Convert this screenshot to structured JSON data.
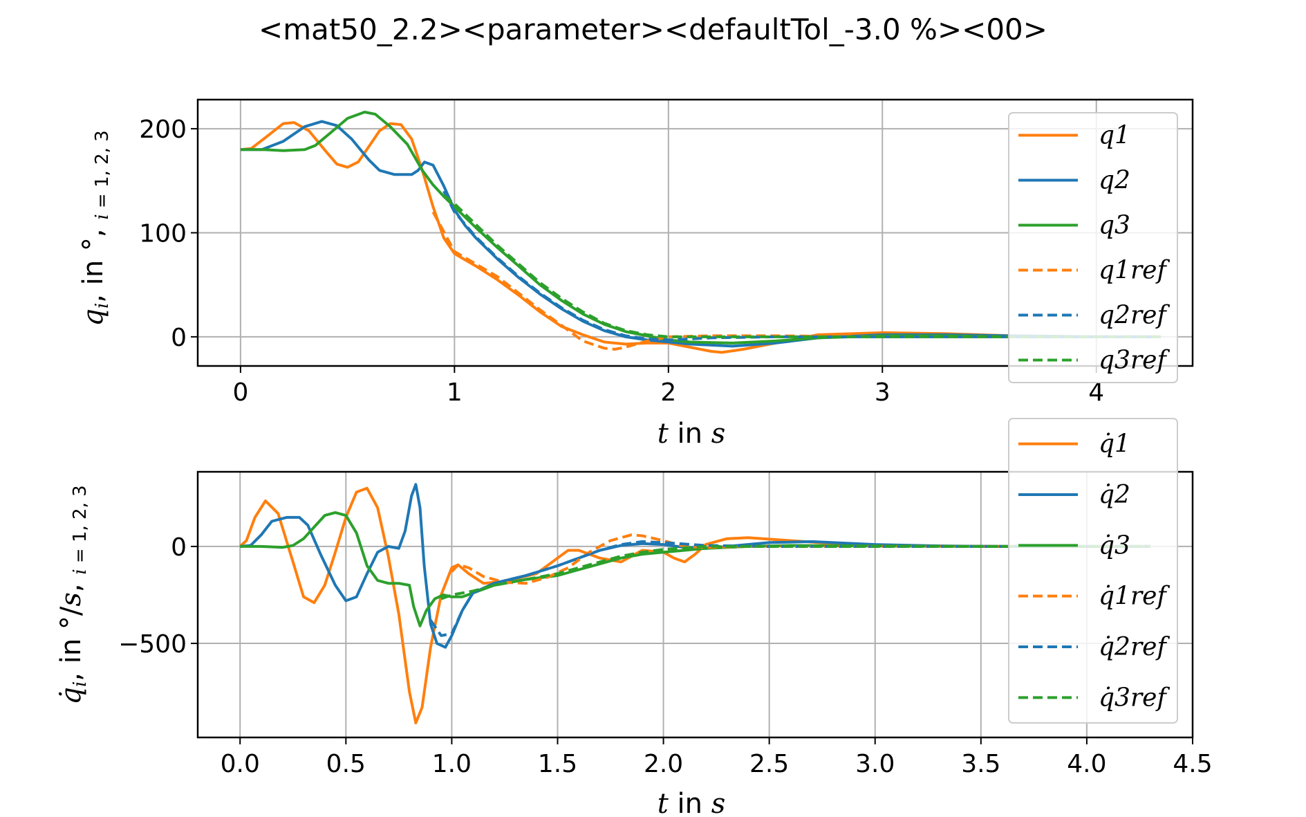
{
  "title": "<mat50_2.2><parameter><defaultTol_-3.0 %><00>",
  "colors": {
    "q1": "#ff7f0e",
    "q2": "#1f77b4",
    "q3": "#2ca02c",
    "grid": "#b0b0b0"
  },
  "chart_data": [
    {
      "type": "line",
      "xlabel": "t in s",
      "ylabel": "q_i,  in °,  i = 1, 2, 3",
      "xlim": [
        -0.2,
        4.45
      ],
      "ylim": [
        -28,
        228
      ],
      "xticks": [
        0,
        1,
        2,
        3,
        4
      ],
      "xtick_labels": [
        "0",
        "1",
        "2",
        "3",
        "4"
      ],
      "yticks": [
        0,
        100,
        200
      ],
      "ytick_labels": [
        "0",
        "100",
        "200"
      ],
      "grid": true,
      "legend_position": "right",
      "legend": [
        "q1",
        "q2",
        "q3",
        "q1ref",
        "q2ref",
        "q3ref"
      ],
      "series": [
        {
          "name": "q1",
          "color": "#ff7f0e",
          "dash": false,
          "x": [
            0,
            0.05,
            0.12,
            0.2,
            0.25,
            0.32,
            0.4,
            0.45,
            0.5,
            0.55,
            0.6,
            0.65,
            0.7,
            0.75,
            0.8,
            0.85,
            0.9,
            0.95,
            1.0,
            1.05,
            1.1,
            1.2,
            1.3,
            1.4,
            1.5,
            1.6,
            1.7,
            1.8,
            1.9,
            2.0,
            2.1,
            2.2,
            2.25,
            2.35,
            2.5,
            2.7,
            3.0,
            3.3,
            3.6,
            4.0,
            4.3
          ],
          "y": [
            180,
            181,
            192,
            205,
            206,
            198,
            178,
            166,
            163,
            168,
            183,
            198,
            205,
            204,
            190,
            160,
            125,
            95,
            80,
            74,
            68,
            55,
            40,
            24,
            10,
            2,
            -5,
            -7,
            -6,
            -6,
            -10,
            -14,
            -15,
            -12,
            -6,
            2,
            4,
            3,
            1,
            0,
            0
          ]
        },
        {
          "name": "q2",
          "color": "#1f77b4",
          "dash": false,
          "x": [
            0,
            0.1,
            0.2,
            0.3,
            0.38,
            0.45,
            0.52,
            0.6,
            0.65,
            0.72,
            0.8,
            0.83,
            0.86,
            0.9,
            0.95,
            1.0,
            1.05,
            1.1,
            1.2,
            1.3,
            1.4,
            1.5,
            1.6,
            1.7,
            1.8,
            1.9,
            2.0,
            2.1,
            2.3,
            2.5,
            2.7,
            3.0,
            3.3,
            3.6,
            4.0,
            4.3
          ],
          "y": [
            180,
            180,
            188,
            202,
            207,
            203,
            190,
            170,
            160,
            156,
            156,
            160,
            168,
            165,
            145,
            122,
            107,
            95,
            75,
            57,
            41,
            27,
            15,
            6,
            0,
            -3,
            -5,
            -7,
            -9,
            -6,
            -1,
            2,
            2,
            1,
            0,
            0
          ]
        },
        {
          "name": "q3",
          "color": "#2ca02c",
          "dash": false,
          "x": [
            0,
            0.1,
            0.2,
            0.3,
            0.35,
            0.42,
            0.5,
            0.58,
            0.63,
            0.7,
            0.78,
            0.85,
            0.9,
            0.95,
            1.0,
            1.1,
            1.2,
            1.3,
            1.4,
            1.5,
            1.6,
            1.7,
            1.8,
            1.9,
            2.0,
            2.1,
            2.3,
            2.5,
            2.7,
            3.0,
            3.3,
            3.6,
            4.0,
            4.3
          ],
          "y": [
            180,
            180,
            179,
            180,
            184,
            196,
            210,
            216,
            214,
            202,
            185,
            160,
            146,
            135,
            125,
            105,
            86,
            68,
            50,
            35,
            22,
            12,
            5,
            1,
            -3,
            -5,
            -6,
            -4,
            -1,
            1,
            1,
            0,
            0,
            0
          ]
        },
        {
          "name": "q1ref",
          "color": "#ff7f0e",
          "dash": true,
          "x": [
            0.9,
            1.0,
            1.05,
            1.1,
            1.2,
            1.3,
            1.4,
            1.5,
            1.6,
            1.7,
            1.75,
            1.8,
            1.9,
            2.0,
            2.2,
            2.5,
            3.0,
            3.5,
            4.0,
            4.3
          ],
          "y": [
            120,
            82,
            76,
            70,
            58,
            42,
            26,
            11,
            -4,
            -11,
            -12,
            -10,
            -4,
            0,
            1,
            1,
            0,
            0,
            0,
            0
          ]
        },
        {
          "name": "q2ref",
          "color": "#1f77b4",
          "dash": true,
          "x": [
            0.95,
            1.0,
            1.1,
            1.2,
            1.3,
            1.4,
            1.5,
            1.6,
            1.7,
            1.8,
            1.9,
            2.0,
            2.2,
            2.5,
            3.0,
            3.5,
            4.0,
            4.3
          ],
          "y": [
            140,
            120,
            96,
            76,
            58,
            42,
            28,
            16,
            7,
            1,
            -2,
            -3,
            -1,
            0,
            0,
            0,
            0,
            0
          ]
        },
        {
          "name": "q3ref",
          "color": "#2ca02c",
          "dash": true,
          "x": [
            0.95,
            1.0,
            1.1,
            1.2,
            1.3,
            1.4,
            1.5,
            1.6,
            1.7,
            1.8,
            1.9,
            2.0,
            2.2,
            2.5,
            3.0,
            3.5,
            4.0,
            4.3
          ],
          "y": [
            136,
            128,
            108,
            88,
            70,
            52,
            37,
            24,
            13,
            6,
            2,
            0,
            0,
            0,
            0,
            0,
            0,
            0
          ]
        }
      ]
    },
    {
      "type": "line",
      "xlabel": "t in s",
      "ylabel": "q̇_i, in °/s,  i = 1, 2, 3",
      "xlim": [
        -0.2,
        4.5
      ],
      "ylim": [
        -985,
        385
      ],
      "xticks": [
        0,
        0.5,
        1.0,
        1.5,
        2.0,
        2.5,
        3.0,
        3.5,
        4.0,
        4.5
      ],
      "xtick_labels": [
        "0.0",
        "0.5",
        "1.0",
        "1.5",
        "2.0",
        "2.5",
        "3.0",
        "3.5",
        "4.0",
        "4.5"
      ],
      "yticks": [
        -500,
        0
      ],
      "ytick_labels": [
        "−500",
        "0"
      ],
      "grid": true,
      "legend_position": "right",
      "legend": [
        "q̇1",
        "q̇2",
        "q̇3",
        "q̇1ref",
        "q̇2ref",
        "q̇3ref"
      ],
      "series": [
        {
          "name": "q̇1",
          "color": "#ff7f0e",
          "dash": false,
          "x": [
            0,
            0.03,
            0.07,
            0.12,
            0.18,
            0.25,
            0.3,
            0.35,
            0.4,
            0.45,
            0.5,
            0.55,
            0.6,
            0.65,
            0.7,
            0.75,
            0.8,
            0.83,
            0.86,
            0.9,
            0.95,
            1.0,
            1.03,
            1.08,
            1.15,
            1.25,
            1.4,
            1.5,
            1.55,
            1.6,
            1.7,
            1.8,
            1.9,
            2.0,
            2.05,
            2.1,
            2.15,
            2.2,
            2.3,
            2.4,
            2.6,
            2.8,
            3.0,
            3.3,
            3.6,
            4.0,
            4.3
          ],
          "y": [
            0,
            30,
            150,
            235,
            170,
            -80,
            -260,
            -290,
            -200,
            -30,
            150,
            280,
            300,
            200,
            -50,
            -350,
            -750,
            -910,
            -830,
            -520,
            -250,
            -110,
            -95,
            -140,
            -190,
            -180,
            -140,
            -60,
            -20,
            -20,
            -60,
            -80,
            -20,
            -30,
            -60,
            -80,
            -40,
            10,
            40,
            45,
            30,
            15,
            5,
            2,
            0,
            0,
            0
          ]
        },
        {
          "name": "q̇2",
          "color": "#1f77b4",
          "dash": false,
          "x": [
            0,
            0.05,
            0.1,
            0.15,
            0.22,
            0.28,
            0.32,
            0.38,
            0.45,
            0.5,
            0.55,
            0.6,
            0.65,
            0.7,
            0.75,
            0.78,
            0.81,
            0.83,
            0.85,
            0.87,
            0.9,
            0.93,
            0.97,
            1.0,
            1.05,
            1.1,
            1.2,
            1.35,
            1.5,
            1.6,
            1.7,
            1.8,
            1.9,
            2.0,
            2.1,
            2.2,
            2.3,
            2.5,
            2.7,
            3.0,
            3.3,
            3.6,
            4.0,
            4.3
          ],
          "y": [
            0,
            5,
            60,
            130,
            150,
            150,
            110,
            -40,
            -200,
            -280,
            -260,
            -140,
            -30,
            0,
            -10,
            80,
            260,
            320,
            200,
            -100,
            -400,
            -500,
            -520,
            -460,
            -330,
            -240,
            -190,
            -150,
            -100,
            -60,
            -20,
            5,
            15,
            10,
            -5,
            -10,
            0,
            20,
            25,
            10,
            3,
            0,
            0,
            0
          ]
        },
        {
          "name": "q̇3",
          "color": "#2ca02c",
          "dash": false,
          "x": [
            0,
            0.1,
            0.2,
            0.25,
            0.3,
            0.35,
            0.4,
            0.45,
            0.5,
            0.55,
            0.6,
            0.65,
            0.7,
            0.75,
            0.8,
            0.82,
            0.85,
            0.88,
            0.92,
            0.96,
            1.0,
            1.05,
            1.1,
            1.2,
            1.35,
            1.5,
            1.6,
            1.7,
            1.8,
            1.9,
            2.0,
            2.1,
            2.2,
            2.4,
            2.6,
            3.0,
            3.5,
            4.0,
            4.3
          ],
          "y": [
            0,
            0,
            -5,
            5,
            40,
            100,
            160,
            175,
            160,
            70,
            -100,
            -175,
            -190,
            -190,
            -200,
            -310,
            -410,
            -330,
            -270,
            -250,
            -260,
            -260,
            -240,
            -200,
            -170,
            -150,
            -120,
            -90,
            -60,
            -40,
            -30,
            -20,
            -10,
            0,
            5,
            3,
            0,
            0,
            0
          ]
        },
        {
          "name": "q̇1ref",
          "color": "#ff7f0e",
          "dash": true,
          "x": [
            1.0,
            1.03,
            1.08,
            1.15,
            1.25,
            1.35,
            1.45,
            1.55,
            1.65,
            1.75,
            1.85,
            1.9,
            2.0,
            2.1,
            2.2,
            2.4,
            2.7,
            3.0,
            3.5,
            4.0,
            4.3
          ],
          "y": [
            -130,
            -95,
            -110,
            -155,
            -185,
            -190,
            -160,
            -110,
            -30,
            30,
            60,
            55,
            30,
            0,
            -5,
            0,
            0,
            0,
            0,
            0,
            0
          ]
        },
        {
          "name": "q̇2ref",
          "color": "#1f77b4",
          "dash": true,
          "x": [
            0.9,
            0.95,
            1.0,
            1.05,
            1.1,
            1.2,
            1.35,
            1.5,
            1.6,
            1.7,
            1.8,
            1.9,
            2.0,
            2.2,
            2.5,
            3.0,
            3.5,
            4.0,
            4.3
          ],
          "y": [
            -380,
            -460,
            -450,
            -330,
            -240,
            -190,
            -150,
            -100,
            -60,
            -20,
            10,
            25,
            20,
            5,
            0,
            0,
            0,
            0,
            0
          ]
        },
        {
          "name": "q̇3ref",
          "color": "#2ca02c",
          "dash": true,
          "x": [
            0.95,
            1.0,
            1.1,
            1.2,
            1.35,
            1.5,
            1.6,
            1.7,
            1.8,
            1.9,
            2.0,
            2.2,
            2.5,
            3.0,
            3.5,
            4.0,
            4.3
          ],
          "y": [
            -270,
            -250,
            -230,
            -200,
            -170,
            -140,
            -110,
            -80,
            -50,
            -30,
            -15,
            0,
            0,
            0,
            0,
            0,
            0
          ]
        }
      ]
    }
  ]
}
